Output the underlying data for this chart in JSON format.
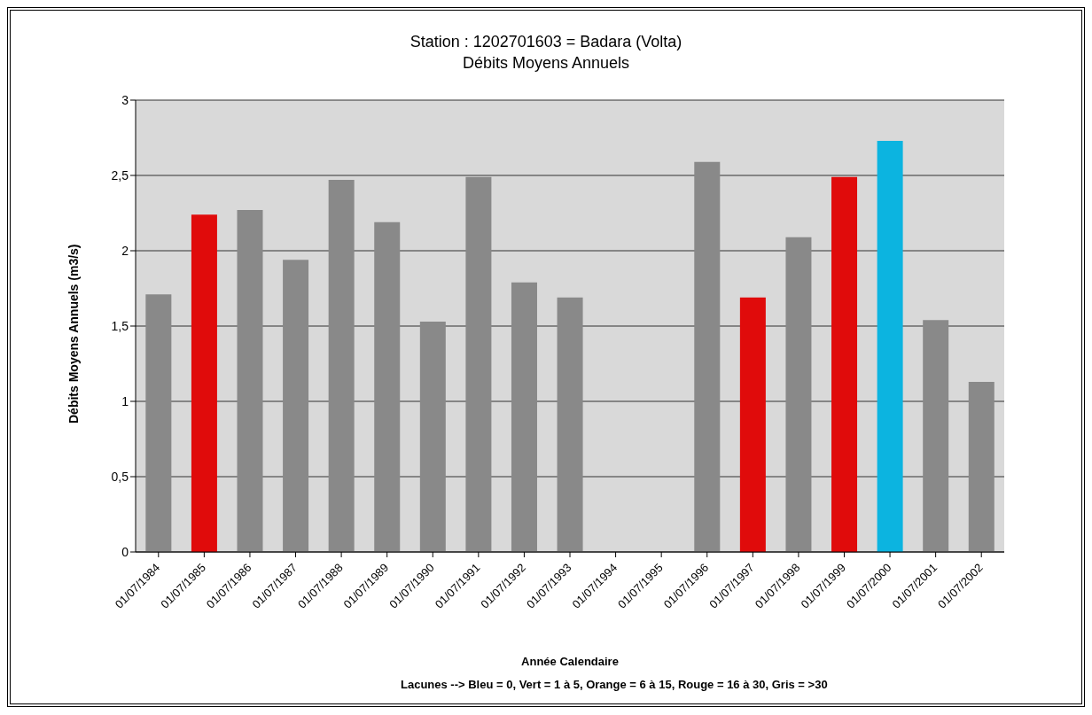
{
  "chart_data": {
    "type": "bar",
    "title": "Station : 1202701603 = Badara    (Volta)",
    "subtitle": "Débits Moyens Annuels",
    "xlabel": "Année Calendaire",
    "ylabel": "Débits Moyens Annuels (m3/s)",
    "annotations": [
      "Lacunes --> Bleu = 0,  Vert = 1 à 5,  Orange = 6 à 15,  Rouge = 16 à 30,  Gris = >30"
    ],
    "categories": [
      "01/07/1984",
      "01/07/1985",
      "01/07/1986",
      "01/07/1987",
      "01/07/1988",
      "01/07/1989",
      "01/07/1990",
      "01/07/1991",
      "01/07/1992",
      "01/07/1993",
      "01/07/1994",
      "01/07/1995",
      "01/07/1996",
      "01/07/1997",
      "01/07/1998",
      "01/07/1999",
      "01/07/2000",
      "01/07/2001",
      "01/07/2002"
    ],
    "values": [
      1.71,
      2.24,
      2.27,
      1.94,
      2.47,
      2.19,
      1.53,
      2.49,
      1.79,
      1.69,
      null,
      null,
      2.59,
      1.69,
      2.09,
      2.49,
      2.73,
      1.54,
      1.13
    ],
    "colors": [
      "#898989",
      "#e00b0b",
      "#898989",
      "#898989",
      "#898989",
      "#898989",
      "#898989",
      "#898989",
      "#898989",
      "#898989",
      "#898989",
      "#898989",
      "#898989",
      "#e00b0b",
      "#898989",
      "#e00b0b",
      "#0cb4e0",
      "#898989",
      "#898989"
    ],
    "ylim": [
      0,
      3
    ],
    "yticks": [
      0,
      {
        "value": 0.5,
        "label": "0,5"
      },
      1,
      {
        "value": 1.5,
        "label": "1,5"
      },
      2,
      {
        "value": 2.5,
        "label": "2,5"
      },
      3
    ],
    "grid": "y"
  }
}
